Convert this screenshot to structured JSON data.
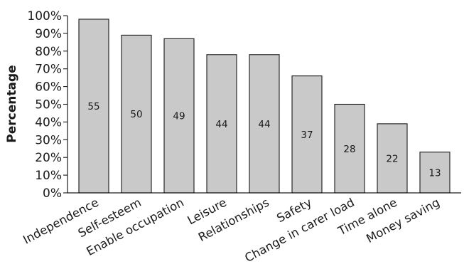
{
  "chart_data": {
    "type": "bar",
    "categories": [
      "Independence",
      "Self-esteem",
      "Enable occupation",
      "Leisure",
      "Relationships",
      "Safety",
      "Change in carer load",
      "Time alone",
      "Money saving"
    ],
    "values": [
      98,
      89,
      87,
      78,
      78,
      66,
      50,
      39,
      23
    ],
    "data_labels": [
      "55",
      "50",
      "49",
      "44",
      "44",
      "37",
      "28",
      "22",
      "13"
    ],
    "ylabel": "Percentage",
    "yticks": [
      "0%",
      "10%",
      "20%",
      "30%",
      "40%",
      "50%",
      "60%",
      "70%",
      "80%",
      "90%",
      "100%"
    ],
    "ylim": [
      0,
      100
    ],
    "bar_color": "#c9c9c9",
    "grid": false,
    "legend": false
  }
}
